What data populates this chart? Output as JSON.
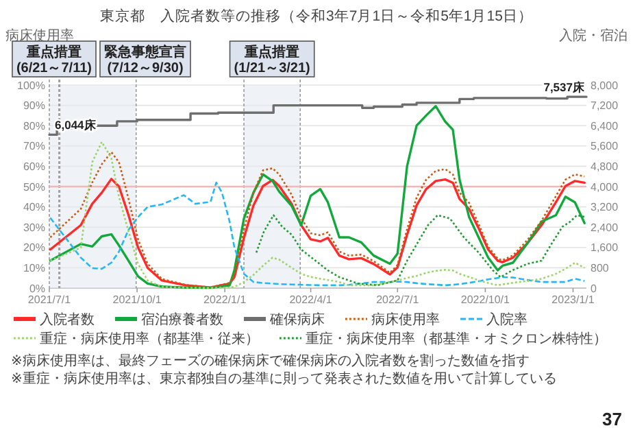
{
  "chart_data": {
    "type": "line",
    "title": "東京都　入院者数等の推移（令和3年7月1日～令和5年1月15日）",
    "ylabel": "病床使用率",
    "y2label": "入院・宿泊",
    "x": [
      "2021-07-02",
      "2021-08-03",
      "2021-08-15",
      "2021-08-25",
      "2021-09-04",
      "2021-09-12",
      "2021-09-22",
      "2021-10-02",
      "2021-10-12",
      "2021-10-27",
      "2021-11-21",
      "2021-12-17",
      "2022-01-06",
      "2022-01-11",
      "2022-01-21",
      "2022-01-31",
      "2022-02-10",
      "2022-02-20",
      "2022-02-27",
      "2022-03-12",
      "2022-03-22",
      "2022-04-01",
      "2022-04-11",
      "2022-04-19",
      "2022-05-01",
      "2022-05-11",
      "2022-05-24",
      "2022-06-06",
      "2022-06-23",
      "2022-07-01",
      "2022-07-11",
      "2022-07-21",
      "2022-07-31",
      "2022-08-10",
      "2022-08-20",
      "2022-08-28",
      "2022-09-04",
      "2022-09-14",
      "2022-09-24",
      "2022-10-04",
      "2022-10-14",
      "2022-10-19",
      "2022-10-30",
      "2022-11-14",
      "2022-11-29",
      "2022-12-14",
      "2022-12-24",
      "2023-01-03",
      "2023-01-13"
    ],
    "series": [
      {
        "name": "入院者数",
        "color": "#ff2a2a",
        "axis": "y2",
        "line_style": "solid",
        "values": [
          1520,
          2480,
          3320,
          3760,
          4300,
          4000,
          2880,
          1600,
          800,
          300,
          110,
          25,
          180,
          430,
          1980,
          3260,
          4020,
          4260,
          4020,
          3320,
          2480,
          1920,
          1840,
          1980,
          1280,
          1140,
          1180,
          950,
          540,
          820,
          2100,
          3260,
          3900,
          4220,
          4280,
          4150,
          3510,
          3120,
          2360,
          1520,
          1080,
          1020,
          1200,
          1760,
          2480,
          3380,
          4020,
          4220,
          4150
        ]
      },
      {
        "name": "宿泊療養者数",
        "color": "#12a83c",
        "axis": "y2",
        "line_style": "solid",
        "values": [
          1080,
          1740,
          1640,
          2040,
          2120,
          1680,
          1080,
          460,
          180,
          60,
          20,
          10,
          110,
          700,
          2740,
          3760,
          4480,
          4220,
          3800,
          3240,
          2480,
          3640,
          3900,
          3380,
          2000,
          2000,
          1800,
          1280,
          960,
          1360,
          4800,
          6400,
          6800,
          7170,
          6560,
          6240,
          4280,
          2800,
          2000,
          1200,
          700,
          880,
          1000,
          1760,
          2620,
          2870,
          3600,
          3380,
          2560
        ]
      },
      {
        "name": "確保病床",
        "type": "step",
        "color": "#6e6e6e",
        "axis": "y2",
        "line_style": "solid",
        "x": [
          "2021-07-01",
          "2021-07-09",
          "2021-07-24",
          "2021-09-10",
          "2021-10-01",
          "2021-11-26",
          "2021-12-25",
          "2022-02-21",
          "2022-05-25",
          "2022-06-06",
          "2022-07-06",
          "2022-07-21",
          "2022-09-04",
          "2022-09-19",
          "2022-12-04",
          "2022-12-26",
          "2023-01-15"
        ],
        "values": [
          6044,
          6300,
          6400,
          6570,
          6630,
          6880,
          6910,
          7200,
          7100,
          7150,
          7230,
          7300,
          7450,
          7490,
          7470,
          7537,
          7537
        ],
        "value_labels": [
          "6,044床",
          null,
          null,
          null,
          null,
          null,
          null,
          null,
          null,
          null,
          null,
          null,
          null,
          null,
          null,
          null,
          "7,537床"
        ]
      },
      {
        "name": "病床使用率",
        "color": "#c55a11",
        "axis": "y",
        "line_style": "dotted",
        "values": [
          25,
          39,
          52,
          61,
          67,
          62,
          44,
          24,
          12,
          4.5,
          1.6,
          0.4,
          2.6,
          6.2,
          28.7,
          47,
          58,
          59,
          56,
          46,
          34.5,
          27,
          26,
          27.5,
          18,
          16,
          16.5,
          13.3,
          7.5,
          11.4,
          29,
          44.6,
          53.4,
          57.7,
          58.6,
          56,
          47,
          42,
          31.6,
          20.4,
          14.5,
          13.7,
          16.1,
          23.6,
          33.2,
          45.3,
          53.4,
          56,
          55
        ]
      },
      {
        "name": "入院率",
        "color": "#27b6f5",
        "axis": "y",
        "line_style": "dashed",
        "x": [
          "2021-07-02",
          "2021-08-03",
          "2021-08-15",
          "2021-08-25",
          "2021-09-04",
          "2021-09-12",
          "2021-09-22",
          "2021-10-02",
          "2021-10-12",
          "2021-10-27",
          "2021-11-19",
          "2021-12-01",
          "2021-12-17",
          "2021-12-23",
          "2021-12-29",
          "2022-01-06",
          "2022-01-11",
          "2022-01-21",
          "2022-01-31",
          "2022-02-10",
          "2022-02-20",
          "2022-02-27",
          "2022-03-12",
          "2022-03-22",
          "2022-04-01",
          "2022-04-11",
          "2022-04-19",
          "2022-05-01",
          "2022-05-11",
          "2022-05-24",
          "2022-06-06",
          "2022-06-23",
          "2022-07-01",
          "2022-07-11",
          "2022-07-21",
          "2022-07-31",
          "2022-08-10",
          "2022-08-20",
          "2022-08-28",
          "2022-09-04",
          "2022-09-14",
          "2022-09-24",
          "2022-10-04",
          "2022-10-14",
          "2022-10-19",
          "2022-10-30",
          "2022-11-14",
          "2022-11-29",
          "2022-12-14",
          "2022-12-24",
          "2023-01-03",
          "2023-01-13"
        ],
        "values": [
          34.6,
          15,
          9.8,
          9.5,
          12.5,
          18,
          28.7,
          35,
          40,
          41.2,
          45.8,
          41.5,
          42.5,
          52,
          47,
          32.7,
          20,
          7,
          3,
          2.5,
          2.2,
          2,
          1.8,
          1.6,
          1.5,
          1.4,
          1.4,
          1.4,
          1.6,
          2.3,
          3,
          3,
          3.2,
          3,
          2.4,
          2,
          1.7,
          1.4,
          1.6,
          2,
          2.6,
          3.4,
          4.3,
          5,
          5.4,
          5.2,
          4,
          3,
          3,
          3,
          4.6,
          3.5
        ]
      },
      {
        "name": "重症・病床使用率（都基準・従来）",
        "color": "#9bd36b",
        "axis": "y",
        "line_style": "dotted",
        "values": [
          13.5,
          19.9,
          62,
          72,
          64,
          45,
          27.9,
          11.9,
          3.8,
          0.6,
          0.2,
          0.1,
          0.3,
          0.6,
          3,
          6.5,
          11,
          15,
          14,
          10,
          7,
          5.5,
          4.6,
          4,
          3,
          1.4,
          1.4,
          1.4,
          3,
          3.8,
          5,
          6,
          7.5,
          8.5,
          9,
          8.7,
          7,
          5.5,
          3.8,
          2.5,
          1.4,
          1.8,
          2.6,
          3.5,
          4.6,
          7,
          9.5,
          12.5,
          10
        ]
      },
      {
        "name": "重症・病床使用率（都基準・オミクロン株特性）",
        "color": "#1f9a30",
        "axis": "y",
        "line_style": "dotted",
        "x": [
          "2022-02-03",
          "2022-02-11",
          "2022-02-21",
          "2022-03-02",
          "2022-03-12",
          "2022-03-22",
          "2022-04-06",
          "2022-04-19",
          "2022-05-01",
          "2022-05-21",
          "2022-06-10",
          "2022-07-01",
          "2022-07-11",
          "2022-07-21",
          "2022-08-02",
          "2022-08-12",
          "2022-08-25",
          "2022-09-09",
          "2022-09-24",
          "2022-10-09",
          "2022-10-17",
          "2022-10-29",
          "2022-11-14",
          "2022-11-29",
          "2022-12-09",
          "2022-12-21",
          "2022-12-29",
          "2023-01-05",
          "2023-01-14"
        ],
        "values": [
          17.5,
          27.9,
          35.9,
          30.3,
          26.3,
          19,
          13.5,
          8.7,
          5.4,
          2.2,
          1.4,
          3.8,
          13.5,
          21.5,
          31,
          35.9,
          34.3,
          24.7,
          17.5,
          8.7,
          5.4,
          8.7,
          11.9,
          13.5,
          21.5,
          30.3,
          32.7,
          35.9,
          35
        ]
      }
    ],
    "xlim": [
      "2021-07-01",
      "2023-01-15"
    ],
    "xticks": [
      {
        "value": "2021-07-01",
        "label": "2021/7/1"
      },
      {
        "value": "2021-10-01",
        "label": "2021/10/1"
      },
      {
        "value": "2022-01-01",
        "label": "2022/1/1"
      },
      {
        "value": "2022-04-01",
        "label": "2022/4/1"
      },
      {
        "value": "2022-07-01",
        "label": "2022/7/1"
      },
      {
        "value": "2022-10-01",
        "label": "2022/10/1"
      },
      {
        "value": "2023-01-01",
        "label": "2023/1/1"
      }
    ],
    "ylim": [
      0,
      100
    ],
    "yticks": [
      {
        "value": 0,
        "label": "0%"
      },
      {
        "value": 10,
        "label": "10%"
      },
      {
        "value": 20,
        "label": "20%"
      },
      {
        "value": 30,
        "label": "30%"
      },
      {
        "value": 40,
        "label": "40%"
      },
      {
        "value": 50,
        "label": "50%"
      },
      {
        "value": 60,
        "label": "60%"
      },
      {
        "value": 70,
        "label": "70%"
      },
      {
        "value": 80,
        "label": "80%"
      },
      {
        "value": 90,
        "label": "90%"
      },
      {
        "value": 100,
        "label": "100%"
      }
    ],
    "y2lim": [
      0,
      8000
    ],
    "y2ticks": [
      0,
      800,
      {
        "value": 1600,
        "label": "1,600"
      },
      {
        "value": 2400,
        "label": "2,400"
      },
      {
        "value": 3200,
        "label": "3,200"
      },
      {
        "value": 4000,
        "label": "4,000"
      },
      {
        "value": 4800,
        "label": "4,800"
      },
      {
        "value": 5600,
        "label": "5,600"
      },
      {
        "value": 6400,
        "label": "6,400"
      },
      {
        "value": 7200,
        "label": "7,200"
      },
      {
        "value": 8000,
        "label": "8,000"
      }
    ],
    "ref_lines": [
      {
        "axis": "y",
        "value": 50,
        "color": "#f4b6b6"
      }
    ],
    "bands": [
      {
        "axis": "x",
        "from": "2021-07-01",
        "to": "2021-07-11",
        "label": "重点措置\n(6/21～7/11)",
        "color": "#e4e9f2"
      },
      {
        "axis": "x",
        "from": "2021-07-12",
        "to": "2021-09-30",
        "label": "緊急事態宣言\n(7/12～9/30)",
        "color": "#e4e9f2"
      },
      {
        "axis": "x",
        "from": "2022-01-21",
        "to": "2022-03-21",
        "label": "重点措置\n(1/21～3/21)",
        "color": "#e4e9f2"
      }
    ],
    "grid": "y",
    "legend": "bottom",
    "annotations": [
      "※病床使用率は、最終フェーズの確保病床で確保病床の入院者数を割った数値を指す",
      "※重症・病床使用率は、東京都独自の基準に則って発表された数値を用いて計算している",
      "37"
    ]
  }
}
